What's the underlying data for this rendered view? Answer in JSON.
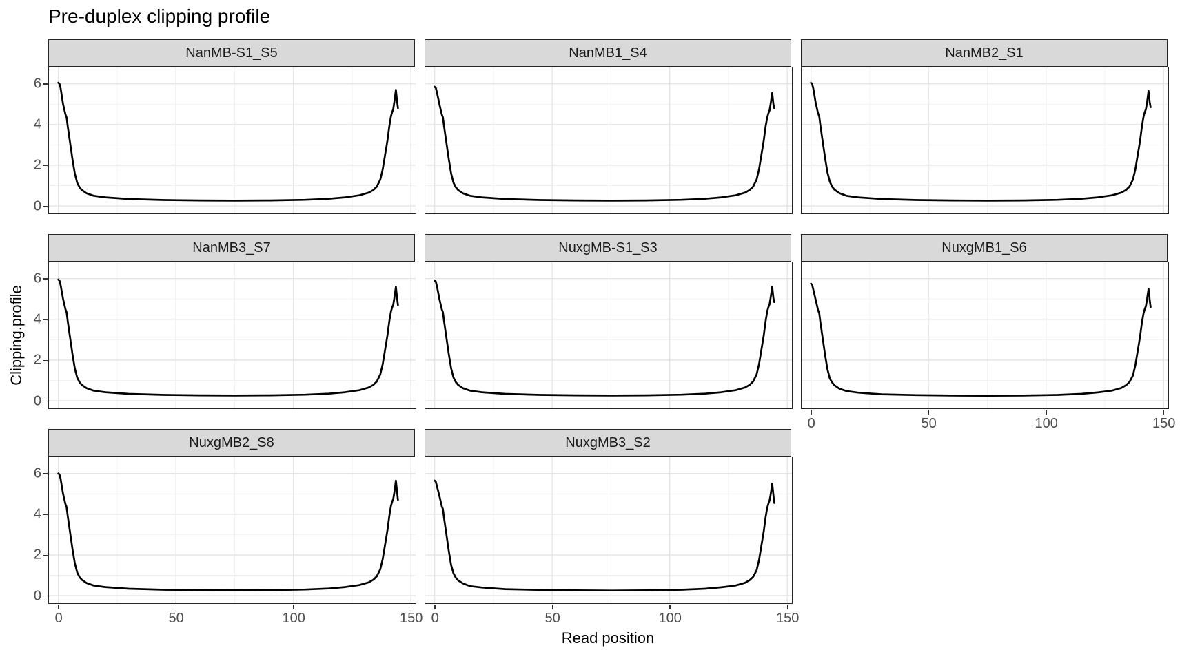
{
  "title": "Pre-duplex clipping profile",
  "axes": {
    "x_label": "Read position",
    "y_label": "Clipping.profile",
    "x_tick_labels": [
      "0",
      "50",
      "100",
      "150"
    ],
    "y_tick_labels": [
      "0",
      "2",
      "4",
      "6"
    ]
  },
  "colors": {
    "line": "#000000",
    "strip_background": "#d9d9d9",
    "panel_background": "#ffffff",
    "panel_border": "#262626",
    "grid_major": "#e4e4e4",
    "grid_minor": "#f1f1f1",
    "tick_mark": "#333333",
    "tick_text": "#4d4d4d"
  },
  "chart_data": {
    "type": "line",
    "title": "Pre-duplex clipping profile",
    "xlabel": "Read position",
    "ylabel": "Clipping.profile",
    "xlim": [
      0,
      150
    ],
    "ylim": [
      0,
      6
    ],
    "x_ticks": [
      0,
      50,
      100,
      150
    ],
    "y_ticks": [
      0,
      2,
      4,
      6
    ],
    "x_minor_ticks": [
      25,
      75,
      125
    ],
    "y_minor_ticks": [
      1,
      3,
      5
    ],
    "grid": "major+minor",
    "legend": "none",
    "facets_layout": {
      "rows": 3,
      "cols": 3,
      "filled_last_row": 2
    },
    "x": [
      0,
      0.5,
      1,
      2,
      3,
      3.5,
      4,
      5,
      6,
      7,
      8,
      9,
      10,
      12,
      15,
      20,
      30,
      45,
      60,
      75,
      90,
      105,
      115,
      122,
      128,
      132,
      134,
      135.5,
      137,
      138,
      139,
      140,
      140.8,
      141.5,
      142,
      142.5,
      143,
      143.6,
      144.1,
      144.5
    ],
    "series": [
      {
        "name": "NanMB-S1_S5",
        "values": [
          6.05,
          6.0,
          5.75,
          5.0,
          4.5,
          4.35,
          3.9,
          3.1,
          2.3,
          1.6,
          1.15,
          0.92,
          0.78,
          0.62,
          0.5,
          0.42,
          0.34,
          0.29,
          0.27,
          0.26,
          0.27,
          0.3,
          0.35,
          0.42,
          0.52,
          0.65,
          0.78,
          0.95,
          1.3,
          1.8,
          2.5,
          3.2,
          3.9,
          4.4,
          4.6,
          4.75,
          5.15,
          5.7,
          5.15,
          4.8
        ]
      },
      {
        "name": "NanMB1_S4",
        "values": [
          5.85,
          5.8,
          5.55,
          5.0,
          4.5,
          4.35,
          3.9,
          3.1,
          2.3,
          1.6,
          1.15,
          0.92,
          0.78,
          0.62,
          0.5,
          0.42,
          0.34,
          0.29,
          0.27,
          0.26,
          0.27,
          0.3,
          0.35,
          0.42,
          0.52,
          0.65,
          0.78,
          0.95,
          1.3,
          1.8,
          2.5,
          3.2,
          3.9,
          4.35,
          4.55,
          4.7,
          5.05,
          5.55,
          5.0,
          4.8
        ]
      },
      {
        "name": "NanMB2_S1",
        "values": [
          6.05,
          6.0,
          5.75,
          5.05,
          4.55,
          4.4,
          3.95,
          3.15,
          2.35,
          1.65,
          1.2,
          0.95,
          0.8,
          0.63,
          0.5,
          0.42,
          0.34,
          0.29,
          0.27,
          0.26,
          0.27,
          0.3,
          0.35,
          0.42,
          0.52,
          0.65,
          0.78,
          0.95,
          1.3,
          1.8,
          2.5,
          3.2,
          3.9,
          4.4,
          4.6,
          4.75,
          5.1,
          5.65,
          5.1,
          4.85
        ]
      },
      {
        "name": "NanMB3_S7",
        "values": [
          5.95,
          5.9,
          5.65,
          5.0,
          4.5,
          4.35,
          3.9,
          3.1,
          2.3,
          1.6,
          1.15,
          0.92,
          0.78,
          0.62,
          0.5,
          0.42,
          0.34,
          0.29,
          0.27,
          0.26,
          0.27,
          0.3,
          0.35,
          0.42,
          0.52,
          0.65,
          0.78,
          0.95,
          1.3,
          1.8,
          2.5,
          3.2,
          3.9,
          4.38,
          4.58,
          4.72,
          5.08,
          5.6,
          5.05,
          4.7
        ]
      },
      {
        "name": "NuxgMB-S1_S3",
        "values": [
          5.9,
          5.85,
          5.6,
          5.0,
          4.5,
          4.35,
          3.9,
          3.1,
          2.3,
          1.6,
          1.15,
          0.92,
          0.78,
          0.62,
          0.5,
          0.42,
          0.34,
          0.29,
          0.27,
          0.26,
          0.27,
          0.3,
          0.35,
          0.42,
          0.52,
          0.65,
          0.78,
          0.95,
          1.3,
          1.8,
          2.5,
          3.2,
          3.9,
          4.4,
          4.6,
          4.75,
          5.1,
          5.6,
          5.05,
          4.85
        ]
      },
      {
        "name": "NuxgMB1_S6",
        "values": [
          5.75,
          5.7,
          5.45,
          4.95,
          4.45,
          4.3,
          3.85,
          3.05,
          2.25,
          1.55,
          1.1,
          0.9,
          0.76,
          0.6,
          0.48,
          0.4,
          0.32,
          0.28,
          0.26,
          0.25,
          0.26,
          0.29,
          0.34,
          0.41,
          0.5,
          0.63,
          0.76,
          0.92,
          1.25,
          1.75,
          2.45,
          3.15,
          3.85,
          4.3,
          4.5,
          4.65,
          5.0,
          5.5,
          4.95,
          4.6
        ]
      },
      {
        "name": "NuxgMB2_S8",
        "values": [
          6.0,
          5.95,
          5.7,
          5.0,
          4.5,
          4.35,
          3.9,
          3.1,
          2.3,
          1.6,
          1.15,
          0.92,
          0.78,
          0.62,
          0.5,
          0.42,
          0.34,
          0.29,
          0.27,
          0.26,
          0.27,
          0.3,
          0.35,
          0.42,
          0.52,
          0.65,
          0.78,
          0.95,
          1.3,
          1.8,
          2.5,
          3.2,
          3.9,
          4.4,
          4.6,
          4.75,
          5.1,
          5.65,
          5.1,
          4.7
        ]
      },
      {
        "name": "NuxgMB3_S2",
        "values": [
          5.65,
          5.6,
          5.35,
          4.9,
          4.4,
          4.25,
          3.8,
          3.0,
          2.2,
          1.5,
          1.1,
          0.88,
          0.75,
          0.6,
          0.47,
          0.4,
          0.32,
          0.28,
          0.26,
          0.25,
          0.26,
          0.29,
          0.34,
          0.41,
          0.5,
          0.63,
          0.76,
          0.92,
          1.25,
          1.75,
          2.45,
          3.15,
          3.85,
          4.32,
          4.52,
          4.68,
          5.0,
          5.5,
          4.95,
          4.55
        ]
      }
    ]
  }
}
